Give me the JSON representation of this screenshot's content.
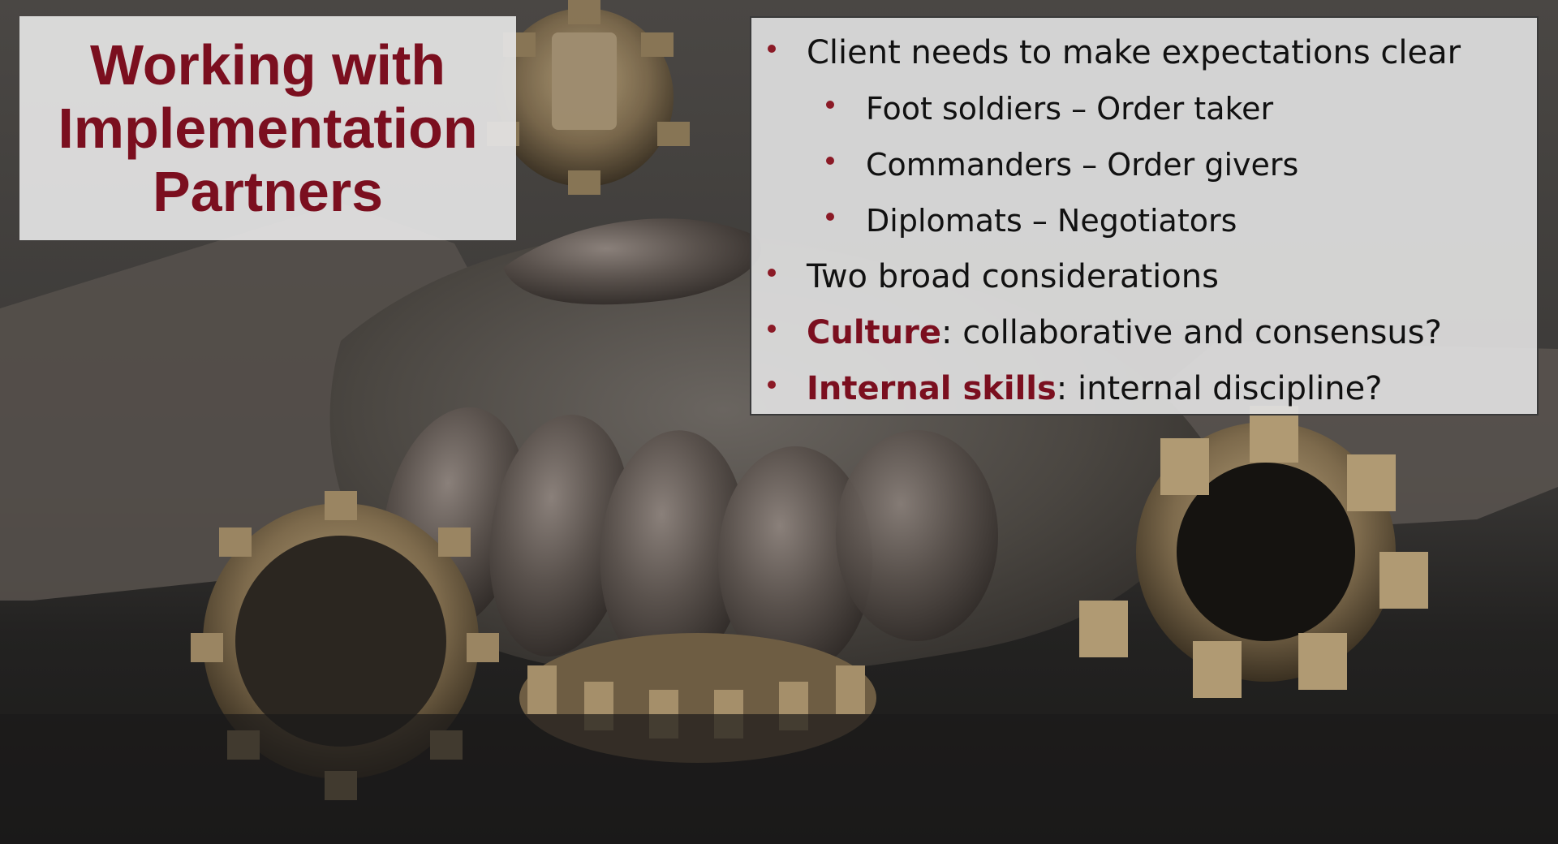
{
  "slide": {
    "title_lines": [
      "Working with",
      "Implementation",
      "Partners"
    ],
    "bullets": [
      {
        "text": "Client needs to make expectations  clear"
      },
      {
        "text": "Foot soldiers – Order taker"
      },
      {
        "text": "Commanders – Order givers"
      },
      {
        "text": "Diplomats – Negotiators"
      },
      {
        "text": "Two broad considerations"
      },
      {
        "emphasis": "Culture",
        "text": ": collaborative and consensus?"
      },
      {
        "emphasis": "Internal skills",
        "text": ": internal discipline?"
      }
    ]
  },
  "background": {
    "image": "bronze handshake over interlocking gears",
    "icons": [
      "handshake-icon",
      "gear-icon"
    ]
  },
  "colors": {
    "accent": "#7b0f1f",
    "bullet_dot": "#8b1a26",
    "panel": "#e0e0e0",
    "background": "#1c1b1a"
  }
}
